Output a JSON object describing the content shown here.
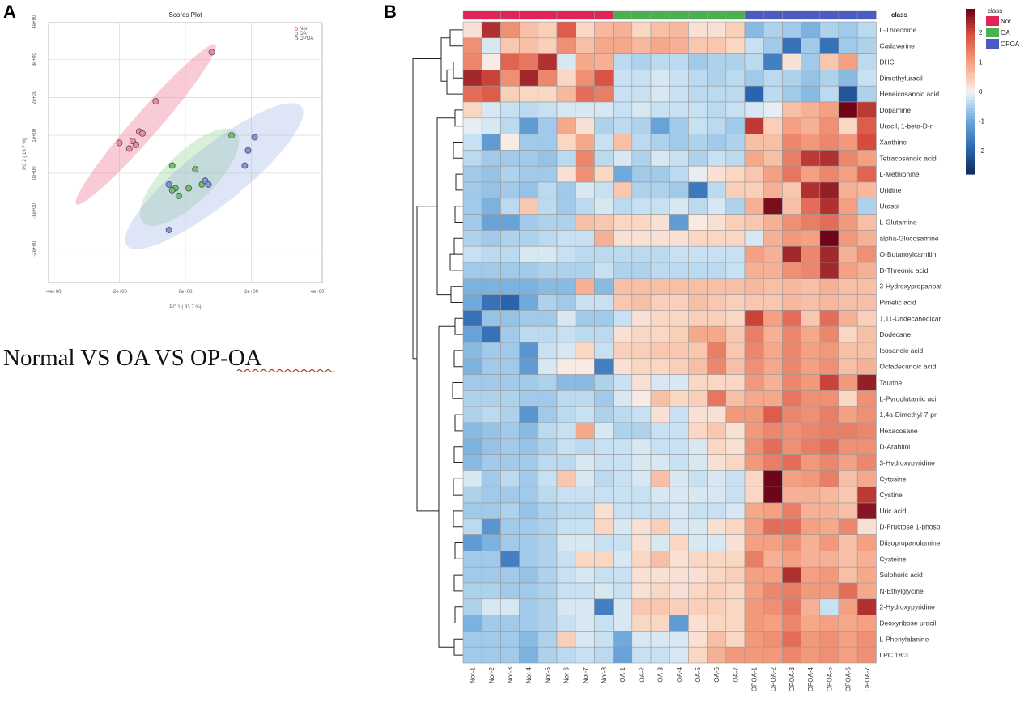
{
  "panels": {
    "a_label": "A",
    "b_label": "B"
  },
  "caption": {
    "prefix": "Normal VS OA VS ",
    "underlined": "OP-OA"
  },
  "chart_data": [
    {
      "type": "scatter",
      "title": "Scores Plot",
      "xlabel": "PC 1 ( 33.7 %)",
      "ylabel": "PC 2 ( 19.7 %)",
      "xlim": [
        -4,
        4
      ],
      "ylim": [
        -3,
        4
      ],
      "x_ticks": [
        "-4e+00",
        "-2e+00",
        "0e+00",
        "2e+00",
        "4e+00"
      ],
      "y_ticks": [
        "4e+00",
        "3e+00",
        "2e+00",
        "1e+00",
        "0e+00",
        "-1e+00",
        "-2e+00"
      ],
      "legend": [
        "Nor",
        "OA",
        "OPOA"
      ],
      "legend_position": "top-right",
      "colors": {
        "Nor": "#e8455f",
        "OA": "#3fa848",
        "OPOA": "#4a5cc4"
      },
      "series": [
        {
          "name": "Nor",
          "points": [
            [
              0.8,
              3.2
            ],
            [
              -0.9,
              1.9
            ],
            [
              -1.4,
              1.1
            ],
            [
              -1.3,
              1.05
            ],
            [
              -1.6,
              0.85
            ],
            [
              -2.0,
              0.8
            ],
            [
              -1.5,
              0.75
            ],
            [
              -1.7,
              0.65
            ]
          ]
        },
        {
          "name": "OA",
          "points": [
            [
              1.4,
              1.0
            ],
            [
              -0.4,
              0.2
            ],
            [
              0.3,
              0.1
            ],
            [
              -0.3,
              -0.4
            ],
            [
              -0.4,
              -0.45
            ],
            [
              -0.2,
              -0.6
            ],
            [
              0.5,
              -0.3
            ],
            [
              0.1,
              -0.4
            ]
          ]
        },
        {
          "name": "OPOA",
          "points": [
            [
              2.1,
              0.95
            ],
            [
              1.9,
              0.6
            ],
            [
              1.8,
              0.2
            ],
            [
              0.6,
              -0.2
            ],
            [
              0.7,
              -0.3
            ],
            [
              -0.5,
              -0.3
            ],
            [
              -0.5,
              -1.5
            ]
          ]
        }
      ]
    },
    {
      "type": "heatmap",
      "class_label": "class",
      "legend": [
        "Nor",
        "OA",
        "OPOA"
      ],
      "class_colors": {
        "Nor": "#e0245a",
        "OA": "#4caf50",
        "OPOA": "#4a5cc4"
      },
      "scale_ticks": [
        "2",
        "1",
        "0",
        "-1",
        "-2"
      ],
      "scale_range": [
        -2.8,
        2.8
      ],
      "columns": [
        "Nor-1",
        "Nor-2",
        "Nor-3",
        "Nor-4",
        "Nor-5",
        "Nor-6",
        "Nor-7",
        "Nor-8",
        "OA-1",
        "OA-2",
        "OA-3",
        "OA-4",
        "OA-5",
        "OA-6",
        "OA-7",
        "OPOA-1",
        "OPOA-2",
        "OPOA-3",
        "OPOA-4",
        "OPOA-5",
        "OPOA-6",
        "OPOA-7"
      ],
      "column_classes": [
        "Nor",
        "Nor",
        "Nor",
        "Nor",
        "Nor",
        "Nor",
        "Nor",
        "Nor",
        "OA",
        "OA",
        "OA",
        "OA",
        "OA",
        "OA",
        "OA",
        "OPOA",
        "OPOA",
        "OPOA",
        "OPOA",
        "OPOA",
        "OPOA",
        "OPOA"
      ],
      "rows": [
        "L-Threonine",
        "Cadaverine",
        "DHC",
        "Dimethyluracil",
        "Heneicosanoic acid",
        "Dopamine",
        "Uracil, 1-beta-D-r",
        "Xanthine",
        "Tetracosanoic acid",
        "L-Methionine",
        "Uridine",
        "Urasol",
        "L-Glutamine",
        "alpha-Glucosamine",
        "O-Butanoylcarnitin",
        "D-Threonic acid",
        "3-Hydroxypropanoat",
        "Pimelic acid",
        "1,11-Undecanedicar",
        "Dodecane",
        "Icosanoic acid",
        "Octadecanoic acid",
        "Taurine",
        "L-Pyroglutamic aci",
        "1,4a-Dimethyl-7-pr",
        "Hexacosane",
        "D-Arabitol",
        "3-Hydroxypyridine",
        "Cytosine",
        "Cystine",
        "Uric acid",
        "D-Fructose 1-phosp",
        "Diisopropanolamine",
        "Cysteine",
        "Sulphuric acid",
        "N-Ethylglycine",
        "2-Hydroxypyridine",
        "Deoxyribose uracil",
        "L-Phenylalanine",
        "LPC 18:3"
      ],
      "values": [
        [
          0.2,
          2.3,
          1.2,
          0.6,
          0.4,
          1.8,
          0.3,
          0.7,
          0.8,
          0.3,
          0.6,
          0.7,
          0.2,
          0.2,
          0.4,
          -0.8,
          -0.5,
          -0.6,
          -0.9,
          -0.5,
          -0.6,
          -0.4
        ],
        [
          1.2,
          -0.2,
          0.5,
          0.6,
          0.4,
          1.2,
          0.6,
          0.9,
          0.9,
          0.7,
          0.9,
          0.8,
          0.5,
          0.5,
          0.3,
          -0.3,
          -0.6,
          -1.8,
          -0.6,
          -1.8,
          -0.6,
          -0.5
        ],
        [
          1.3,
          0.1,
          1.7,
          1.5,
          2.3,
          -0.2,
          0.9,
          0.8,
          -0.4,
          -0.5,
          -0.4,
          -0.4,
          -0.6,
          -0.5,
          -0.5,
          -0.4,
          -1.6,
          0.2,
          -0.6,
          0.5,
          1.0,
          -0.4
        ],
        [
          2.4,
          2.1,
          1.2,
          2.4,
          1.3,
          0.3,
          1.2,
          1.9,
          -0.3,
          -0.3,
          -0.2,
          -0.3,
          -0.4,
          -0.5,
          -0.4,
          -0.6,
          -0.4,
          -0.5,
          -0.7,
          -0.5,
          -0.8,
          -0.3
        ],
        [
          1.6,
          1.8,
          0.4,
          0.3,
          0.3,
          0.7,
          1.6,
          1.4,
          -0.3,
          -0.3,
          -0.2,
          -0.3,
          -0.4,
          -0.4,
          -0.4,
          -2.0,
          -0.4,
          -0.6,
          -0.8,
          -0.4,
          -2.2,
          -0.5
        ],
        [
          0.3,
          -0.2,
          -0.3,
          -0.4,
          -0.3,
          -0.2,
          -0.2,
          -0.2,
          -0.3,
          -0.2,
          -0.3,
          -0.3,
          -0.3,
          -0.4,
          -0.3,
          -0.2,
          -0.1,
          0.6,
          0.8,
          1.0,
          2.9,
          2.2
        ],
        [
          -0.1,
          -0.2,
          -0.4,
          -1.2,
          -0.6,
          0.9,
          0.2,
          -0.5,
          -0.4,
          -0.5,
          -1.1,
          -0.6,
          -0.3,
          -0.4,
          -0.6,
          2.2,
          0.4,
          1.0,
          0.8,
          1.2,
          0.3,
          1.8
        ],
        [
          -0.3,
          -1.2,
          0.1,
          -0.6,
          -0.6,
          0.3,
          0.9,
          -0.3,
          0.6,
          -0.4,
          -0.5,
          -0.6,
          -0.5,
          -0.6,
          -0.5,
          0.6,
          0.6,
          1.3,
          1.1,
          1.3,
          1.1,
          2.0
        ],
        [
          -0.4,
          -0.6,
          -0.6,
          -0.6,
          -0.7,
          -0.4,
          1.3,
          -0.4,
          -0.2,
          -0.5,
          -0.2,
          -0.3,
          -0.5,
          -0.3,
          -0.4,
          0.9,
          0.6,
          1.4,
          2.2,
          2.3,
          1.3,
          1.0
        ],
        [
          -0.6,
          -0.7,
          -0.5,
          -0.6,
          -0.6,
          0.2,
          1.2,
          0.3,
          -1.0,
          -0.6,
          -0.6,
          -0.4,
          -0.1,
          0.2,
          0.3,
          0.5,
          1.0,
          1.5,
          1.0,
          1.3,
          1.0,
          1.7
        ],
        [
          -0.6,
          -0.7,
          -0.6,
          -0.7,
          -0.4,
          -0.6,
          -0.2,
          -0.3,
          0.5,
          -0.5,
          -0.5,
          -0.6,
          -1.7,
          -0.4,
          0.4,
          0.4,
          0.8,
          0.5,
          2.3,
          2.5,
          0.8,
          0.7
        ],
        [
          -0.6,
          -0.9,
          -0.4,
          0.5,
          -0.4,
          -0.6,
          -0.4,
          -0.2,
          -0.4,
          -0.3,
          -0.3,
          -0.2,
          -0.4,
          -0.2,
          -0.5,
          0.8,
          2.7,
          0.6,
          1.6,
          2.3,
          1.0,
          -0.5
        ],
        [
          -0.6,
          -1.1,
          -1.1,
          -0.6,
          -0.5,
          -0.5,
          0.6,
          0.5,
          0.3,
          0.3,
          0.2,
          -1.2,
          0.1,
          0.2,
          0.4,
          0.5,
          0.8,
          1.2,
          1.4,
          1.6,
          1.1,
          0.6
        ],
        [
          -0.5,
          -0.6,
          -0.5,
          -0.5,
          -0.4,
          -0.3,
          -0.3,
          0.8,
          0.2,
          0.2,
          0.2,
          0.2,
          0.3,
          0.3,
          0.3,
          -0.2,
          0.8,
          1.1,
          1.0,
          2.8,
          1.1,
          0.8
        ],
        [
          -0.3,
          -0.4,
          -0.4,
          -0.2,
          -0.2,
          -0.3,
          -0.4,
          -0.4,
          -0.4,
          -0.4,
          -0.4,
          -0.3,
          -0.3,
          -0.3,
          -0.3,
          1.0,
          0.8,
          2.4,
          1.3,
          2.4,
          0.8,
          1.2
        ],
        [
          -0.6,
          -0.6,
          -0.6,
          -0.6,
          -0.5,
          -0.5,
          -0.5,
          -0.3,
          -0.5,
          -0.5,
          -0.4,
          -0.4,
          -0.4,
          -0.4,
          -0.3,
          0.8,
          0.8,
          1.2,
          1.3,
          2.4,
          1.0,
          0.8
        ],
        [
          -0.9,
          -0.9,
          -0.9,
          -0.9,
          -0.8,
          -0.8,
          0.8,
          -0.8,
          0.6,
          0.6,
          0.6,
          0.6,
          0.6,
          0.6,
          0.6,
          0.7,
          0.6,
          0.7,
          0.6,
          0.8,
          0.6,
          0.6
        ],
        [
          -1.0,
          -1.8,
          -2.0,
          -1.0,
          -0.5,
          -0.6,
          -0.3,
          -0.3,
          0.5,
          0.6,
          0.4,
          0.4,
          0.6,
          0.5,
          0.4,
          0.5,
          0.5,
          0.7,
          0.6,
          0.7,
          0.6,
          0.6
        ],
        [
          -1.8,
          -0.7,
          -0.7,
          -0.6,
          -0.6,
          -0.2,
          -0.6,
          -0.6,
          -0.3,
          0.2,
          0.3,
          0.3,
          0.4,
          0.4,
          0.3,
          2.1,
          1.0,
          1.6,
          0.5,
          1.6,
          0.8,
          0.4
        ],
        [
          -1.1,
          -1.8,
          -0.6,
          -0.4,
          -0.4,
          -0.3,
          -0.4,
          -0.4,
          0.2,
          0.3,
          0.3,
          0.4,
          0.9,
          0.9,
          0.5,
          1.4,
          0.8,
          1.3,
          0.9,
          1.3,
          0.3,
          0.6
        ],
        [
          -0.8,
          -0.6,
          -0.6,
          -1.3,
          -0.3,
          -0.2,
          0.3,
          -0.3,
          0.4,
          0.4,
          0.5,
          0.5,
          0.5,
          1.4,
          0.5,
          1.3,
          0.9,
          1.3,
          1.0,
          1.1,
          0.6,
          0.6
        ],
        [
          -0.9,
          -0.6,
          -0.6,
          -1.2,
          -0.2,
          0.1,
          0.1,
          -1.6,
          0.2,
          0.3,
          0.3,
          0.4,
          0.6,
          1.3,
          0.6,
          1.2,
          0.9,
          1.3,
          1.0,
          1.2,
          0.6,
          0.8
        ],
        [
          -0.6,
          -0.6,
          -0.6,
          -0.6,
          -0.5,
          -0.8,
          -0.8,
          -0.5,
          -0.3,
          0.2,
          -0.2,
          -0.2,
          0.3,
          0.3,
          0.3,
          1.1,
          0.8,
          1.3,
          1.1,
          2.1,
          1.1,
          2.5
        ],
        [
          -0.5,
          -0.5,
          -0.5,
          -0.6,
          -0.6,
          -0.4,
          -0.4,
          -0.6,
          -0.2,
          0.1,
          0.6,
          0.3,
          0.4,
          1.5,
          0.6,
          0.9,
          0.9,
          1.5,
          1.2,
          1.2,
          0.3,
          1.2
        ],
        [
          -0.5,
          -0.4,
          -0.5,
          -1.3,
          -0.6,
          -0.4,
          -0.3,
          -0.5,
          -0.4,
          -0.3,
          0.2,
          -0.3,
          0.2,
          0.2,
          1.1,
          1.1,
          1.8,
          1.3,
          1.2,
          1.4,
          1.0,
          1.2
        ],
        [
          -0.8,
          -0.7,
          -0.6,
          -0.8,
          -0.4,
          -0.3,
          0.9,
          -0.2,
          -0.5,
          -0.5,
          -0.3,
          -0.3,
          0.3,
          0.5,
          0.2,
          1.1,
          1.3,
          1.2,
          1.3,
          1.4,
          1.4,
          1.3
        ],
        [
          -0.9,
          -0.7,
          -0.6,
          -0.7,
          -0.5,
          -0.3,
          -0.4,
          -0.3,
          -0.3,
          -0.2,
          -0.3,
          -0.3,
          -0.2,
          0.3,
          0.2,
          1.2,
          1.6,
          1.2,
          1.4,
          1.6,
          1.2,
          1.2
        ],
        [
          -0.8,
          -0.6,
          -0.6,
          -0.6,
          -0.4,
          -0.4,
          -0.2,
          -0.3,
          -0.3,
          -0.2,
          -0.2,
          -0.3,
          -0.2,
          0.2,
          0.3,
          1.1,
          1.4,
          1.6,
          1.1,
          1.3,
          1.0,
          1.3
        ],
        [
          -0.2,
          -0.6,
          -0.4,
          -0.6,
          -0.3,
          0.5,
          -0.2,
          -0.4,
          -0.3,
          -0.2,
          0.6,
          -0.2,
          -0.3,
          -0.2,
          -0.3,
          0.3,
          2.9,
          1.0,
          1.1,
          1.4,
          0.6,
          0.9
        ],
        [
          -0.5,
          -0.6,
          -0.6,
          -0.6,
          -0.4,
          -0.3,
          -0.3,
          -0.3,
          -0.3,
          -0.3,
          -0.2,
          -0.2,
          -0.2,
          -0.2,
          -0.3,
          0.3,
          2.9,
          0.8,
          0.8,
          0.7,
          0.5,
          2.2
        ],
        [
          -0.6,
          -0.6,
          -0.5,
          -0.7,
          -0.5,
          -0.4,
          -0.4,
          0.2,
          -0.3,
          -0.3,
          -0.3,
          -0.2,
          -0.3,
          -0.3,
          -0.2,
          0.9,
          1.0,
          1.4,
          0.8,
          0.8,
          0.6,
          2.6
        ],
        [
          -0.4,
          -1.3,
          -0.6,
          -0.6,
          -0.5,
          -0.3,
          -0.3,
          0.3,
          -0.2,
          0.2,
          0.4,
          -0.2,
          -0.2,
          0.2,
          0.3,
          1.0,
          1.6,
          1.6,
          1.0,
          0.9,
          1.3,
          0.2
        ],
        [
          -1.2,
          -0.9,
          -0.6,
          -0.6,
          -0.5,
          -0.2,
          -0.2,
          -0.3,
          -0.3,
          0.2,
          -0.2,
          0.3,
          -0.2,
          -0.2,
          0.2,
          1.0,
          1.0,
          1.2,
          0.8,
          1.1,
          0.6,
          1.0
        ],
        [
          -0.6,
          -0.6,
          -1.6,
          -0.6,
          -0.5,
          -0.3,
          0.3,
          0.3,
          -0.2,
          0.3,
          0.6,
          0.2,
          0.3,
          0.3,
          0.3,
          1.4,
          0.8,
          1.0,
          0.8,
          0.8,
          0.6,
          0.8
        ],
        [
          -0.6,
          -0.6,
          -0.6,
          -0.7,
          -0.5,
          -0.3,
          -0.2,
          -0.3,
          -0.3,
          0.2,
          0.2,
          0.2,
          0.2,
          0.3,
          0.4,
          1.0,
          1.0,
          2.3,
          1.0,
          1.1,
          0.6,
          0.9
        ],
        [
          -0.5,
          -0.5,
          -0.6,
          -0.6,
          -0.5,
          -0.3,
          -0.3,
          -0.2,
          -0.3,
          0.2,
          0.3,
          0.2,
          0.3,
          0.4,
          0.3,
          1.0,
          1.3,
          1.4,
          1.1,
          1.1,
          1.6,
          0.9
        ],
        [
          -0.5,
          -0.2,
          -0.2,
          -0.6,
          -0.5,
          -0.2,
          -0.2,
          -1.6,
          -0.2,
          0.5,
          0.5,
          0.4,
          0.4,
          0.4,
          0.3,
          1.1,
          1.2,
          1.5,
          0.8,
          -0.3,
          1.0,
          2.3
        ],
        [
          -0.9,
          -0.6,
          -0.6,
          -0.6,
          -0.5,
          -0.3,
          -0.2,
          -0.3,
          -0.2,
          0.3,
          0.3,
          -1.2,
          0.2,
          0.3,
          0.3,
          1.1,
          1.0,
          1.3,
          0.9,
          1.0,
          0.9,
          1.0
        ],
        [
          -0.6,
          -0.6,
          -0.6,
          -0.8,
          -0.5,
          0.4,
          -0.2,
          -0.3,
          -1.0,
          -0.2,
          -0.2,
          -0.2,
          0.2,
          0.6,
          0.3,
          1.1,
          1.2,
          1.6,
          1.1,
          1.2,
          1.0,
          1.2
        ],
        [
          -0.6,
          -0.6,
          -0.6,
          -0.9,
          -0.5,
          -0.4,
          -0.3,
          -0.4,
          -1.1,
          -0.3,
          -0.3,
          -0.2,
          0.3,
          0.8,
          1.1,
          1.1,
          1.1,
          1.3,
          1.1,
          1.2,
          1.0,
          1.2
        ]
      ]
    }
  ]
}
